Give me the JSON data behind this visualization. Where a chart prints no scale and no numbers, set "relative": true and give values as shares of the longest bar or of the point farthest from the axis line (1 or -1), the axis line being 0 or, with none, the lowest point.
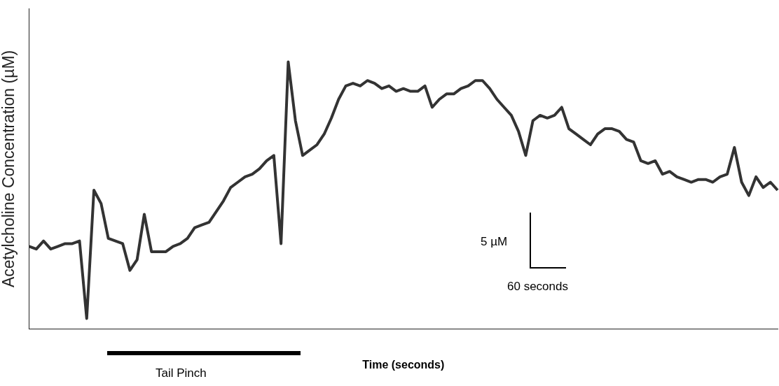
{
  "chart_data": {
    "type": "line",
    "relative": true,
    "xlabel": "Time (seconds)",
    "ylabel": "Acetylcholine Concentration (µM)",
    "annotations": [
      "5 µM",
      "60 seconds",
      "Tail Pinch"
    ],
    "categories": [
      null,
      null,
      null,
      null,
      null,
      null,
      null,
      null,
      null,
      null,
      null,
      null,
      null,
      null,
      null,
      null,
      null,
      null,
      null,
      null,
      null,
      null,
      null,
      null,
      null,
      null,
      null,
      null,
      null,
      null,
      null,
      null,
      null,
      null,
      null,
      null,
      null,
      null,
      null,
      null,
      null,
      null,
      null,
      null,
      null,
      null,
      null,
      null,
      null,
      null,
      null,
      null,
      null,
      null,
      null,
      null,
      null,
      null,
      null,
      null,
      null,
      null,
      null,
      null,
      null,
      null,
      null,
      null,
      null,
      null,
      null,
      null,
      null,
      null,
      null,
      null,
      null,
      null,
      null,
      null,
      null,
      null,
      null,
      null,
      null,
      null,
      null,
      null,
      null,
      null,
      null,
      null,
      null,
      null,
      null,
      null,
      null,
      null,
      null,
      null,
      null,
      null,
      null,
      null,
      null
    ],
    "series": [
      {
        "color": "#333333",
        "values": [
          0.31,
          0.3,
          0.33,
          0.3,
          0.31,
          0.32,
          0.32,
          0.33,
          0.04,
          0.52,
          0.47,
          0.34,
          0.33,
          0.32,
          0.22,
          0.26,
          0.43,
          0.29,
          0.29,
          0.29,
          0.31,
          0.32,
          0.34,
          0.38,
          0.39,
          0.4,
          0.44,
          0.48,
          0.53,
          0.55,
          0.57,
          0.58,
          0.6,
          0.63,
          0.65,
          0.32,
          1,
          0.78,
          0.65,
          0.67,
          0.69,
          0.73,
          0.79,
          0.86,
          0.91,
          0.92,
          0.91,
          0.93,
          0.92,
          0.9,
          0.91,
          0.89,
          0.9,
          0.89,
          0.89,
          0.91,
          0.83,
          0.86,
          0.88,
          0.88,
          0.9,
          0.91,
          0.93,
          0.93,
          0.9,
          0.86,
          0.83,
          0.8,
          0.74,
          0.65,
          0.78,
          0.8,
          0.79,
          0.8,
          0.83,
          0.75,
          0.73,
          0.71,
          0.69,
          0.73,
          0.75,
          0.75,
          0.74,
          0.71,
          0.7,
          0.63,
          0.62,
          0.63,
          0.58,
          0.59,
          0.57,
          0.56,
          0.55,
          0.56,
          0.56,
          0.55,
          0.57,
          0.58,
          0.68,
          0.55,
          0.5,
          0.57,
          0.53,
          0.55,
          0.52
        ]
      }
    ]
  }
}
